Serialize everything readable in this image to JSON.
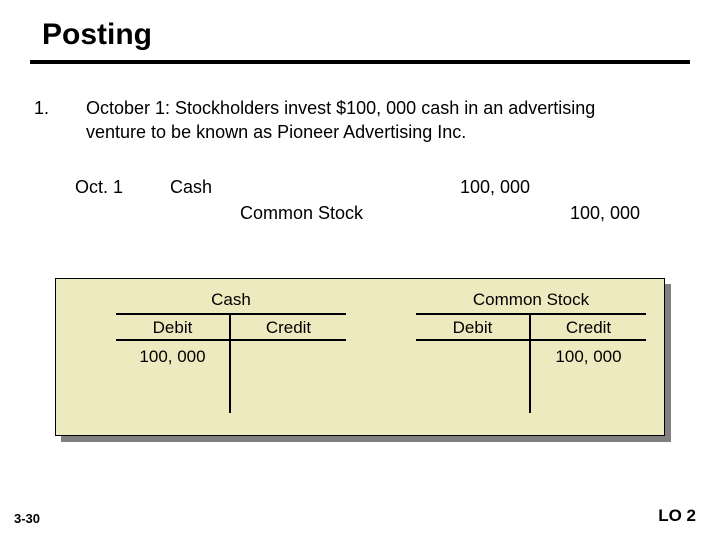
{
  "title": "Posting",
  "item_number": "1.",
  "body": "October 1: Stockholders invest $100, 000 cash in an advertising venture to be known as Pioneer Advertising Inc.",
  "journal": {
    "date": "Oct. 1",
    "debit_account": "Cash",
    "debit_amount": "100, 000",
    "credit_account": "Common Stock",
    "credit_amount": "100, 000"
  },
  "taccounts": {
    "debit_label": "Debit",
    "credit_label": "Credit",
    "left": {
      "title": "Cash",
      "debit_value": "100, 000",
      "credit_value": ""
    },
    "right": {
      "title": "Common Stock",
      "debit_value": "",
      "credit_value": "100, 000"
    }
  },
  "page_num": "3-30",
  "lo": "LO 2",
  "colors": {
    "box_bg": "#eeeabf",
    "shadow": "#808080"
  }
}
